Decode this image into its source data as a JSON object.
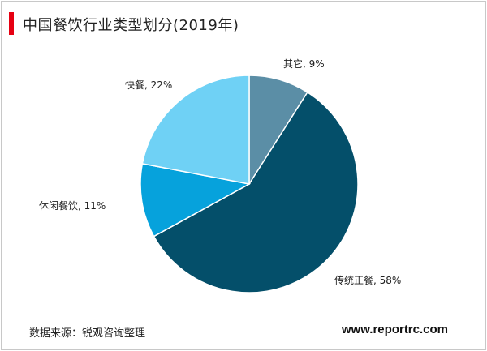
{
  "title": "中国餐饮行业类型划分(2019年)",
  "source": "数据来源：锐观咨询整理",
  "website": "www.reportrc.com",
  "colors": {
    "accent": "#e60012",
    "slice_borders": "#ffffff"
  },
  "chart_data": {
    "type": "pie",
    "start_angle_deg": 0,
    "direction": "clockwise",
    "slices": [
      {
        "label": "其它",
        "value": 9,
        "text": "其它, 9%",
        "color": "#5b8ea6"
      },
      {
        "label": "传统正餐",
        "value": 58,
        "text": "传统正餐, 58%",
        "color": "#044f6a"
      },
      {
        "label": "休闲餐饮",
        "value": 11,
        "text": "休闲餐饮, 11%",
        "color": "#06a2dc"
      },
      {
        "label": "快餐",
        "value": 22,
        "text": "快餐, 22%",
        "color": "#6fd1f5"
      }
    ]
  }
}
